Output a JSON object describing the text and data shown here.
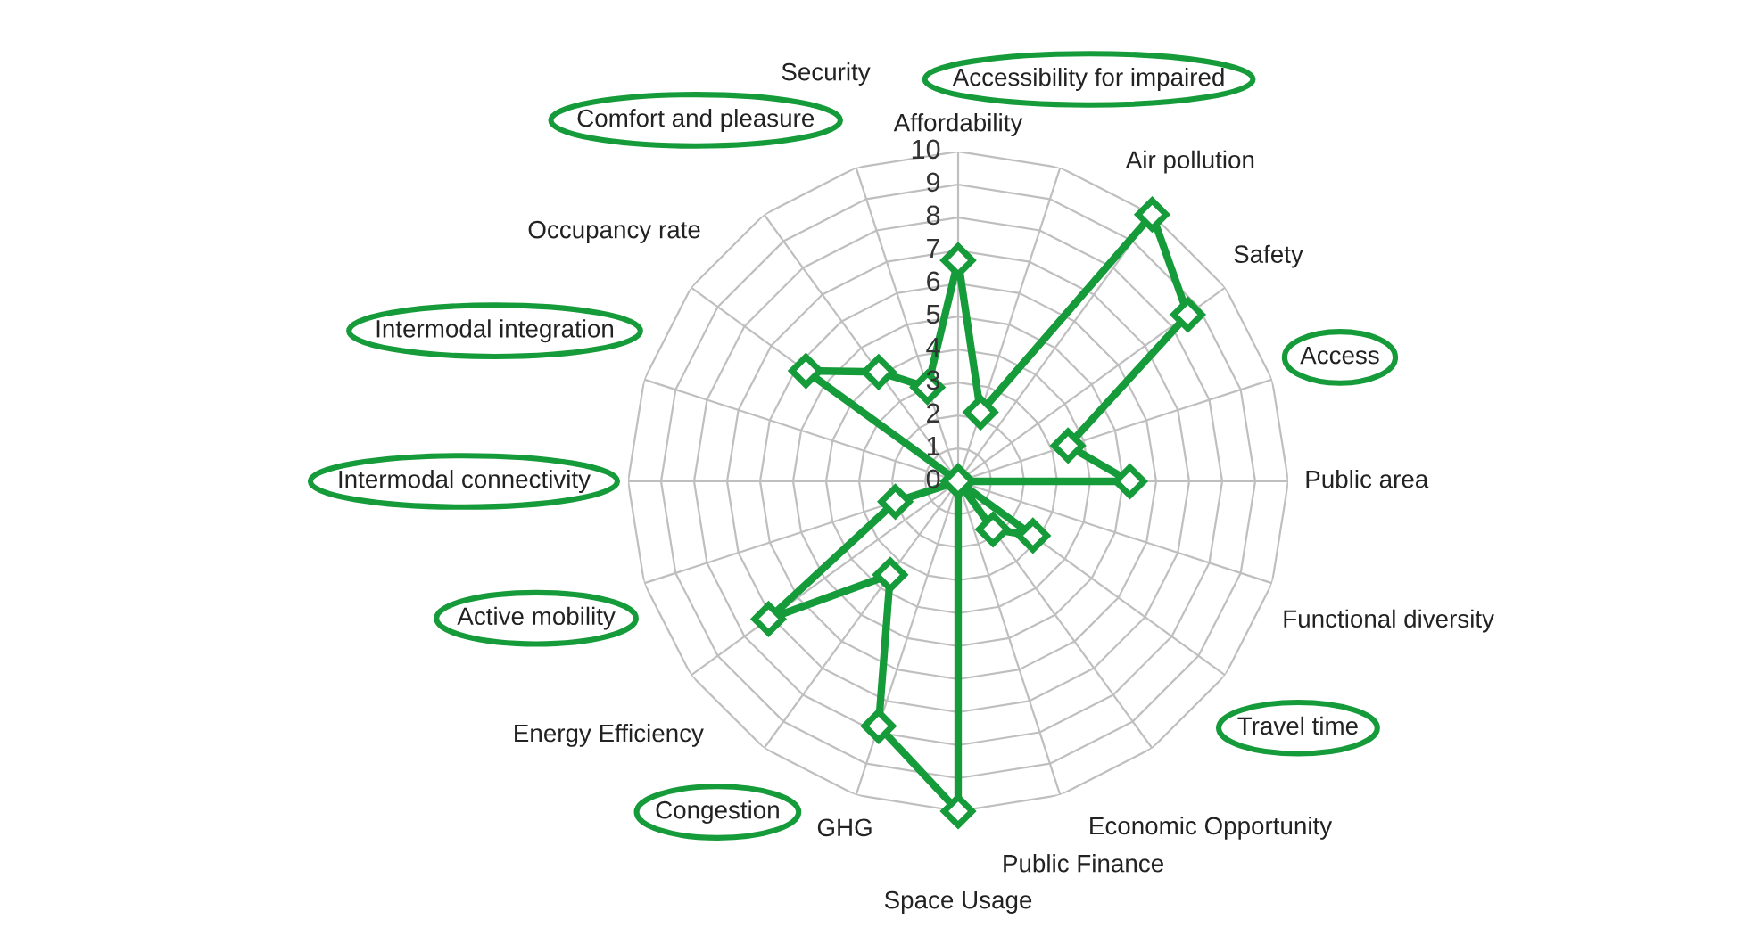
{
  "chart_data": {
    "type": "radar",
    "categories": [
      "Affordability",
      "Accessibility for impaired",
      "Air pollution",
      "Safety",
      "Access",
      "Public area",
      "Functional diversity",
      "Travel time",
      "Economic Opportunity",
      "Public Finance",
      "Space Usage",
      "GHG",
      "Congestion",
      "Energy Efficiency",
      "Active mobility",
      "Intermodal connectivity",
      "Intermodal integration",
      "Occupancy rate",
      "Comfort and pleasure",
      "Security"
    ],
    "series": [
      {
        "color": "#169b3a",
        "values": [
          6.7,
          2.2,
          10,
          8.6,
          3.5,
          5.2,
          0,
          2.8,
          1.8,
          0,
          10,
          7.8,
          3.5,
          7.1,
          2.0,
          0,
          0,
          5.7,
          4.1,
          3.0
        ]
      }
    ],
    "ylim": [
      0,
      10
    ],
    "yticks": [
      0,
      1,
      2,
      3,
      4,
      5,
      6,
      7,
      8,
      9,
      10
    ],
    "marker": "diamond",
    "grid": true,
    "legend": false
  }
}
